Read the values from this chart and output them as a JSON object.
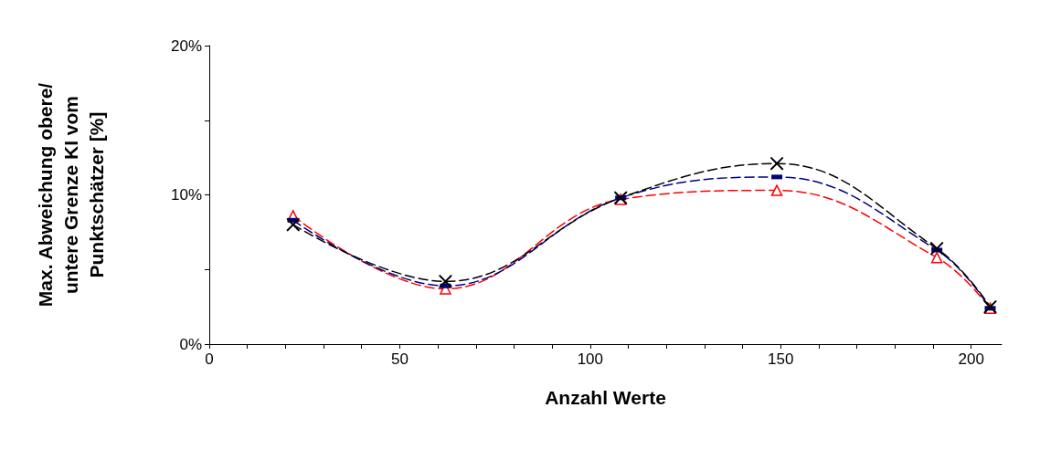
{
  "chart_data": {
    "type": "line",
    "xlabel": "Anzahl Werte",
    "ylabel": "Max. Abweichung obere/\nuntere Grenze KI vom\nPunktschätzer [%]",
    "x": [
      22,
      62,
      108,
      149,
      191,
      205
    ],
    "series": [
      {
        "color": "#ff0000",
        "marker": "triangle",
        "line_style": "dashed",
        "values": [
          8.6,
          3.7,
          9.7,
          10.3,
          5.8,
          2.4
        ]
      },
      {
        "color": "#000080",
        "marker": "square",
        "line_style": "dashed",
        "values": [
          8.3,
          3.9,
          9.8,
          11.2,
          6.3,
          2.4
        ]
      },
      {
        "color": "#000000",
        "marker": "cross",
        "line_style": "dashed",
        "values": [
          8.0,
          4.2,
          9.8,
          12.1,
          6.4,
          2.5
        ]
      }
    ],
    "xlim": [
      0,
      208
    ],
    "xticks": [
      0,
      {
        "value": 10,
        "label": null
      },
      {
        "value": 20,
        "label": null
      },
      {
        "value": 30,
        "label": null
      },
      {
        "value": 40,
        "label": null
      },
      50,
      {
        "value": 60,
        "label": null
      },
      {
        "value": 70,
        "label": null
      },
      {
        "value": 80,
        "label": null
      },
      {
        "value": 90,
        "label": null
      },
      100,
      {
        "value": 110,
        "label": null
      },
      {
        "value": 120,
        "label": null
      },
      {
        "value": 130,
        "label": null
      },
      {
        "value": 140,
        "label": null
      },
      150,
      {
        "value": 160,
        "label": null
      },
      {
        "value": 170,
        "label": null
      },
      {
        "value": 180,
        "label": null
      },
      {
        "value": 190,
        "label": null
      },
      200
    ],
    "ylim": [
      0,
      20
    ],
    "yticks": [
      {
        "value": 0,
        "label": "0%"
      },
      {
        "value": 5,
        "label": null
      },
      {
        "value": 10,
        "label": "10%"
      },
      {
        "value": 15,
        "label": null
      },
      {
        "value": 20,
        "label": "20%"
      }
    ]
  }
}
